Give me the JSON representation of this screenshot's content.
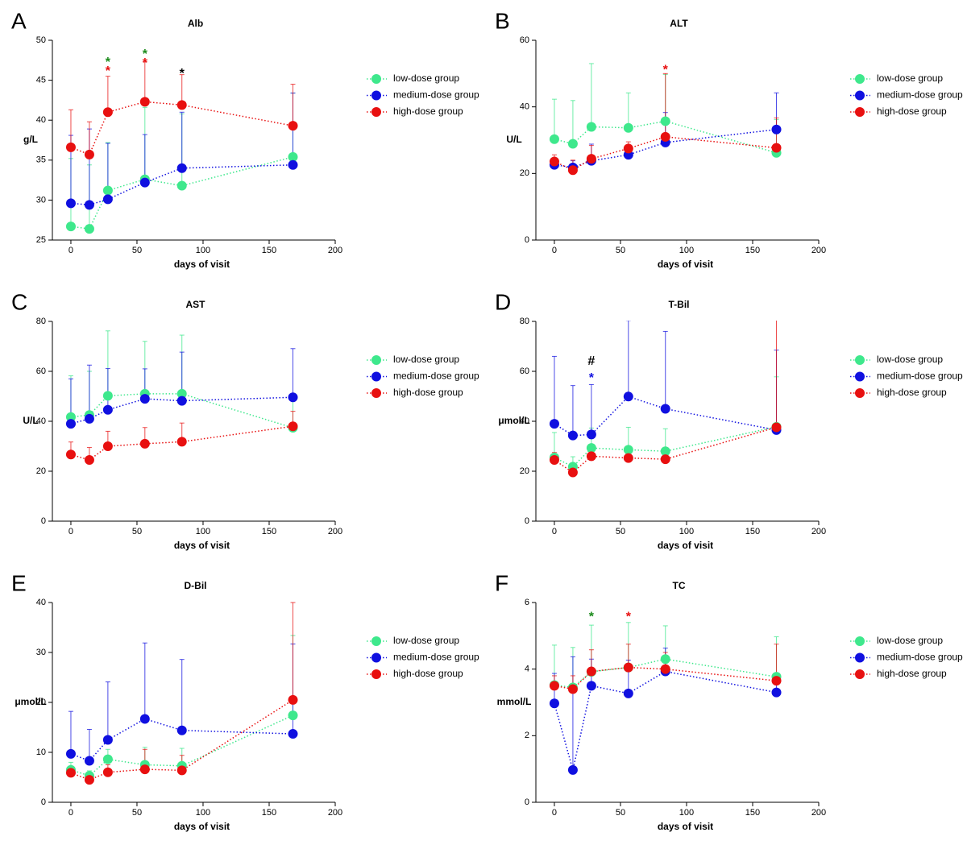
{
  "chart_data": [
    {
      "type": "line",
      "panel_label": "A",
      "title": "Alb",
      "xlabel": "days of visit",
      "ylabel": "g/L",
      "x": [
        0,
        14,
        28,
        56,
        84,
        168
      ],
      "xlim": [
        -14,
        200
      ],
      "xticks": [
        0,
        50,
        100,
        150,
        200
      ],
      "ylim": [
        25,
        50
      ],
      "yticks": [
        25,
        30,
        35,
        40,
        45,
        50
      ],
      "series": [
        {
          "name": "low-dose group",
          "color": "#3ee88c",
          "values": [
            26.7,
            26.4,
            31.2,
            32.6,
            31.8,
            35.4
          ],
          "errors": [
            8.5,
            8,
            6,
            9,
            9,
            8
          ]
        },
        {
          "name": "medium-dose group",
          "color": "#1010e0",
          "values": [
            29.6,
            29.4,
            30.1,
            32.2,
            34.0,
            34.4
          ],
          "errors": [
            8.5,
            9.5,
            7,
            6,
            7,
            9
          ]
        },
        {
          "name": "high-dose group",
          "color": "#e81010",
          "values": [
            36.6,
            35.7,
            41.0,
            42.3,
            41.9,
            39.3
          ],
          "errors": [
            4.7,
            4.1,
            4.5,
            5,
            3.8,
            5.2
          ]
        }
      ],
      "annotations": [
        {
          "text": "*",
          "x": 28,
          "y": 47.6,
          "color": "#1a8a1a"
        },
        {
          "text": "*",
          "x": 28,
          "y": 46.5,
          "color": "#e81010"
        },
        {
          "text": "*",
          "x": 56,
          "y": 48.6,
          "color": "#1a8a1a"
        },
        {
          "text": "*",
          "x": 56,
          "y": 47.5,
          "color": "#e81010"
        },
        {
          "text": "*",
          "x": 84,
          "y": 46.2,
          "color": "#000000"
        }
      ]
    },
    {
      "type": "line",
      "panel_label": "B",
      "title": "ALT",
      "xlabel": "days of visit",
      "ylabel": "U/L",
      "x": [
        0,
        14,
        28,
        56,
        84,
        168
      ],
      "xlim": [
        -14,
        200
      ],
      "xticks": [
        0,
        50,
        100,
        150,
        200
      ],
      "ylim": [
        0,
        60
      ],
      "yticks": [
        0,
        20,
        40,
        60
      ],
      "series": [
        {
          "name": "low-dose group",
          "color": "#3ee88c",
          "values": [
            30.3,
            28.9,
            34.0,
            33.7,
            35.7,
            26.2
          ],
          "errors": [
            12,
            13,
            19,
            10.5,
            14,
            10
          ]
        },
        {
          "name": "medium-dose group",
          "color": "#1010e0",
          "values": [
            22.6,
            21.8,
            23.8,
            25.6,
            29.3,
            33.2
          ],
          "errors": [
            2,
            2,
            5,
            2,
            9,
            11
          ]
        },
        {
          "name": "high-dose group",
          "color": "#e81010",
          "values": [
            23.6,
            21.0,
            24.4,
            27.5,
            31.0,
            27.7
          ],
          "errors": [
            2,
            3,
            4,
            2,
            19,
            9
          ]
        }
      ],
      "annotations": [
        {
          "text": "*",
          "x": 84,
          "y": 52,
          "color": "#e81010"
        }
      ]
    },
    {
      "type": "line",
      "panel_label": "C",
      "title": "AST",
      "xlabel": "days of visit",
      "ylabel": "U/L",
      "x": [
        0,
        14,
        28,
        56,
        84,
        168
      ],
      "xlim": [
        -14,
        200
      ],
      "xticks": [
        0,
        50,
        100,
        150,
        200
      ],
      "ylim": [
        0,
        80
      ],
      "yticks": [
        0,
        20,
        40,
        60,
        80
      ],
      "series": [
        {
          "name": "low-dose group",
          "color": "#3ee88c",
          "values": [
            41.7,
            42.5,
            50.2,
            51.0,
            51.0,
            37.4
          ],
          "errors": [
            16.5,
            17.5,
            26,
            21,
            23.5,
            12
          ]
        },
        {
          "name": "medium-dose group",
          "color": "#1010e0",
          "values": [
            39.0,
            41.0,
            44.6,
            49.0,
            48.2,
            49.6
          ],
          "errors": [
            18,
            21.5,
            16.5,
            12,
            19.5,
            19.5
          ]
        },
        {
          "name": "high-dose group",
          "color": "#e81010",
          "values": [
            26.7,
            24.5,
            30.0,
            31.0,
            31.8,
            38.0
          ],
          "errors": [
            5,
            5,
            6,
            6.5,
            7.5,
            6
          ]
        }
      ],
      "annotations": []
    },
    {
      "type": "line",
      "panel_label": "D",
      "title": "T-Bil",
      "xlabel": "days of visit",
      "ylabel": "μmol/L",
      "x": [
        0,
        14,
        28,
        56,
        84,
        168
      ],
      "xlim": [
        -14,
        200
      ],
      "xticks": [
        0,
        50,
        100,
        150,
        200
      ],
      "ylim": [
        0,
        80
      ],
      "yticks": [
        0,
        20,
        40,
        60,
        80
      ],
      "series": [
        {
          "name": "low-dose group",
          "color": "#3ee88c",
          "values": [
            25.5,
            21.8,
            29.3,
            28.6,
            28.0,
            37.8
          ],
          "errors": [
            10,
            4,
            8,
            9,
            9,
            20
          ]
        },
        {
          "name": "medium-dose group",
          "color": "#1010e0",
          "values": [
            39.0,
            34.3,
            34.7,
            49.9,
            45.0,
            36.5
          ],
          "errors": [
            27,
            20,
            20,
            30.5,
            31,
            32
          ]
        },
        {
          "name": "high-dose group",
          "color": "#e81010",
          "values": [
            24.5,
            19.5,
            26.0,
            25.3,
            24.8,
            37.6
          ],
          "errors": [
            3,
            2,
            3,
            3,
            3,
            43
          ]
        }
      ],
      "annotations": [
        {
          "text": "#",
          "x": 28,
          "y": 64,
          "color": "#000000"
        },
        {
          "text": "*",
          "x": 28,
          "y": 58.5,
          "color": "#1010e0"
        }
      ]
    },
    {
      "type": "line",
      "panel_label": "E",
      "title": "D-Bil",
      "xlabel": "days of visit",
      "ylabel": "μmol/L",
      "x": [
        0,
        14,
        28,
        56,
        84,
        168
      ],
      "xlim": [
        -14,
        200
      ],
      "xticks": [
        0,
        50,
        100,
        150,
        200
      ],
      "ylim": [
        0,
        40
      ],
      "yticks": [
        0,
        10,
        20,
        30,
        40
      ],
      "series": [
        {
          "name": "low-dose group",
          "color": "#3ee88c",
          "values": [
            6.5,
            5.3,
            8.6,
            7.5,
            7.3,
            17.4
          ],
          "errors": [
            1.5,
            1,
            2,
            3.5,
            3.5,
            16
          ]
        },
        {
          "name": "medium-dose group",
          "color": "#1010e0",
          "values": [
            9.7,
            8.3,
            12.5,
            16.7,
            14.4,
            13.7
          ],
          "errors": [
            8.5,
            6.3,
            11.6,
            15.2,
            14.2,
            18
          ]
        },
        {
          "name": "high-dose group",
          "color": "#e81010",
          "values": [
            5.9,
            4.5,
            6.0,
            6.6,
            6.4,
            20.5
          ],
          "errors": [
            1,
            1.2,
            1.5,
            4,
            3,
            19.5
          ]
        }
      ],
      "annotations": []
    },
    {
      "type": "line",
      "panel_label": "F",
      "title": "TC",
      "xlabel": "days of visit",
      "ylabel": "mmol/L",
      "x": [
        0,
        14,
        28,
        56,
        84,
        168
      ],
      "xlim": [
        -14,
        200
      ],
      "xticks": [
        0,
        50,
        100,
        150,
        200
      ],
      "ylim": [
        0,
        6
      ],
      "yticks": [
        0,
        2,
        4,
        6
      ],
      "series": [
        {
          "name": "low-dose group",
          "color": "#3ee88c",
          "values": [
            3.52,
            3.45,
            3.92,
            4.05,
            4.3,
            3.77
          ],
          "errors": [
            1.2,
            1.2,
            1.4,
            1.35,
            1,
            1.2
          ]
        },
        {
          "name": "medium-dose group",
          "color": "#1010e0",
          "values": [
            2.97,
            0.97,
            3.5,
            3.27,
            3.93,
            3.3
          ],
          "errors": [
            0.9,
            3.4,
            0.8,
            1,
            0.7,
            0.5
          ]
        },
        {
          "name": "high-dose group",
          "color": "#e81010",
          "values": [
            3.5,
            3.4,
            3.93,
            4.05,
            4.0,
            3.65
          ],
          "errors": [
            0.3,
            0.4,
            0.65,
            0.7,
            0.5,
            1.1
          ]
        }
      ],
      "annotations": [
        {
          "text": "*",
          "x": 28,
          "y": 5.65,
          "color": "#1a8a1a"
        },
        {
          "text": "*",
          "x": 56,
          "y": 5.65,
          "color": "#e81010"
        }
      ]
    }
  ]
}
